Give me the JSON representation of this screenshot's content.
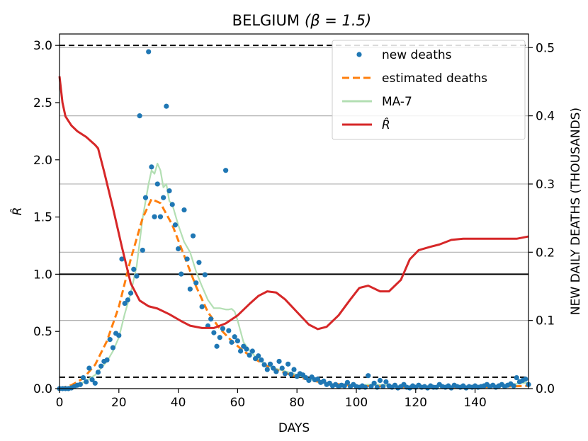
{
  "chart_data": {
    "type": "line",
    "title": "BELGIUM",
    "title_math": "(β = 1.5)",
    "xlabel": "DAYS",
    "ylabel_left": "R̂",
    "ylabel_right": "NEW DAILY DEATHS (THOUSANDS)",
    "xlim": [
      0,
      158
    ],
    "ylim_left": [
      0,
      3.1
    ],
    "ylim_right": [
      0,
      0.52
    ],
    "xticks": [
      "0",
      "20",
      "40",
      "60",
      "80",
      "100",
      "120",
      "140"
    ],
    "yticks_left": [
      "0.0",
      "0.5",
      "1.0",
      "1.5",
      "2.0",
      "2.5",
      "3.0"
    ],
    "yticks_right": [
      "0.0",
      "0.1",
      "0.2",
      "0.3",
      "0.4",
      "0.5"
    ],
    "grid": "horizontal lines at right-axis ticks",
    "legend_position": "top-right",
    "legend": [
      {
        "label": "new deaths",
        "style": "dot",
        "color": "#1f77b4"
      },
      {
        "label": "estimated deaths",
        "style": "dashed",
        "color": "#ff7f0e"
      },
      {
        "label": "MA-7",
        "style": "line",
        "color": "#b3dfb3"
      },
      {
        "label": "R̂",
        "style": "line",
        "color": "#d62728"
      }
    ],
    "reference_lines_left": [
      {
        "y": 3.0,
        "style": "dashed"
      },
      {
        "y": 1.0,
        "style": "solid"
      },
      {
        "y": 0.1,
        "style": "dashed"
      }
    ],
    "series": [
      {
        "name": "new deaths",
        "axis": "right",
        "kind": "scatter",
        "color": "#1f77b4",
        "points": [
          [
            0,
            0
          ],
          [
            1,
            0
          ],
          [
            2,
            0
          ],
          [
            3,
            0
          ],
          [
            4,
            0.001
          ],
          [
            5,
            0.003
          ],
          [
            6,
            0.005
          ],
          [
            7,
            0.006
          ],
          [
            8,
            0.016
          ],
          [
            9,
            0.01
          ],
          [
            10,
            0.03
          ],
          [
            11,
            0.013
          ],
          [
            12,
            0.008
          ],
          [
            13,
            0.024
          ],
          [
            14,
            0.033
          ],
          [
            15,
            0.04
          ],
          [
            16,
            0.042
          ],
          [
            17,
            0.072
          ],
          [
            18,
            0.06
          ],
          [
            19,
            0.081
          ],
          [
            20,
            0.078
          ],
          [
            21,
            0.19
          ],
          [
            22,
            0.125
          ],
          [
            23,
            0.13
          ],
          [
            24,
            0.14
          ],
          [
            25,
            0.175
          ],
          [
            26,
            0.165
          ],
          [
            27,
            0.4
          ],
          [
            28,
            0.203
          ],
          [
            29,
            0.28
          ],
          [
            30,
            0.494
          ],
          [
            31,
            0.325
          ],
          [
            32,
            0.252
          ],
          [
            33,
            0.3
          ],
          [
            34,
            0.252
          ],
          [
            35,
            0.28
          ],
          [
            36,
            0.414
          ],
          [
            37,
            0.29
          ],
          [
            38,
            0.27
          ],
          [
            39,
            0.24
          ],
          [
            40,
            0.205
          ],
          [
            41,
            0.168
          ],
          [
            42,
            0.262
          ],
          [
            43,
            0.19
          ],
          [
            44,
            0.146
          ],
          [
            45,
            0.224
          ],
          [
            46,
            0.155
          ],
          [
            47,
            0.185
          ],
          [
            48,
            0.12
          ],
          [
            49,
            0.167
          ],
          [
            50,
            0.092
          ],
          [
            51,
            0.102
          ],
          [
            52,
            0.082
          ],
          [
            53,
            0.062
          ],
          [
            54,
            0.075
          ],
          [
            55,
            0.088
          ],
          [
            56,
            0.32
          ],
          [
            57,
            0.085
          ],
          [
            58,
            0.068
          ],
          [
            59,
            0.076
          ],
          [
            60,
            0.07
          ],
          [
            61,
            0.055
          ],
          [
            62,
            0.062
          ],
          [
            63,
            0.058
          ],
          [
            64,
            0.049
          ],
          [
            65,
            0.055
          ],
          [
            66,
            0.044
          ],
          [
            67,
            0.048
          ],
          [
            68,
            0.042
          ],
          [
            69,
            0.035
          ],
          [
            70,
            0.028
          ],
          [
            71,
            0.036
          ],
          [
            72,
            0.03
          ],
          [
            73,
            0.025
          ],
          [
            74,
            0.04
          ],
          [
            75,
            0.03
          ],
          [
            76,
            0.022
          ],
          [
            77,
            0.036
          ],
          [
            78,
            0.021
          ],
          [
            79,
            0.028
          ],
          [
            80,
            0.018
          ],
          [
            81,
            0.022
          ],
          [
            82,
            0.02
          ],
          [
            83,
            0.016
          ],
          [
            84,
            0.012
          ],
          [
            85,
            0.017
          ],
          [
            86,
            0.013
          ],
          [
            87,
            0.014
          ],
          [
            88,
            0.009
          ],
          [
            89,
            0.011
          ],
          [
            90,
            0.006
          ],
          [
            91,
            0.008
          ],
          [
            92,
            0.004
          ],
          [
            93,
            0.006
          ],
          [
            94,
            0.003
          ],
          [
            95,
            0.005
          ],
          [
            96,
            0.004
          ],
          [
            97,
            0.009
          ],
          [
            98,
            0.003
          ],
          [
            99,
            0.006
          ],
          [
            100,
            0.003
          ],
          [
            101,
            0.002
          ],
          [
            102,
            0.004
          ],
          [
            103,
            0.002
          ],
          [
            104,
            0.019
          ],
          [
            105,
            0.003
          ],
          [
            106,
            0.008
          ],
          [
            107,
            0.002
          ],
          [
            108,
            0.012
          ],
          [
            109,
            0.003
          ],
          [
            110,
            0.01
          ],
          [
            111,
            0.004
          ],
          [
            112,
            0.002
          ],
          [
            113,
            0.005
          ],
          [
            114,
            0.001
          ],
          [
            115,
            0.003
          ],
          [
            116,
            0.006
          ],
          [
            117,
            0.002
          ],
          [
            118,
            0.001
          ],
          [
            119,
            0.004
          ],
          [
            120,
            0.002
          ],
          [
            121,
            0.005
          ],
          [
            122,
            0.002
          ],
          [
            123,
            0.003
          ],
          [
            124,
            0.001
          ],
          [
            125,
            0.004
          ],
          [
            126,
            0.002
          ],
          [
            127,
            0.002
          ],
          [
            128,
            0.006
          ],
          [
            129,
            0.003
          ],
          [
            130,
            0.002
          ],
          [
            131,
            0.004
          ],
          [
            132,
            0.001
          ],
          [
            133,
            0.005
          ],
          [
            134,
            0.003
          ],
          [
            135,
            0.002
          ],
          [
            136,
            0.004
          ],
          [
            137,
            0.001
          ],
          [
            138,
            0.003
          ],
          [
            139,
            0.002
          ],
          [
            140,
            0.004
          ],
          [
            141,
            0.002
          ],
          [
            142,
            0.003
          ],
          [
            143,
            0.004
          ],
          [
            144,
            0.006
          ],
          [
            145,
            0.003
          ],
          [
            146,
            0.005
          ],
          [
            147,
            0.002
          ],
          [
            148,
            0.004
          ],
          [
            149,
            0.006
          ],
          [
            150,
            0.003
          ],
          [
            151,
            0.005
          ],
          [
            152,
            0.007
          ],
          [
            153,
            0.004
          ],
          [
            154,
            0.016
          ],
          [
            155,
            0.01
          ],
          [
            156,
            0.012
          ],
          [
            157,
            0.014
          ],
          [
            158,
            0.006
          ]
        ]
      },
      {
        "name": "estimated deaths",
        "axis": "right",
        "kind": "line",
        "dash": true,
        "color": "#ff7f0e",
        "points": [
          [
            0,
            0
          ],
          [
            4,
            0.005
          ],
          [
            8,
            0.015
          ],
          [
            12,
            0.035
          ],
          [
            16,
            0.07
          ],
          [
            20,
            0.12
          ],
          [
            24,
            0.19
          ],
          [
            28,
            0.25
          ],
          [
            31,
            0.278
          ],
          [
            34,
            0.272
          ],
          [
            38,
            0.24
          ],
          [
            42,
            0.195
          ],
          [
            46,
            0.15
          ],
          [
            50,
            0.112
          ],
          [
            54,
            0.088
          ],
          [
            58,
            0.07
          ],
          [
            62,
            0.055
          ],
          [
            66,
            0.043
          ],
          [
            70,
            0.033
          ],
          [
            74,
            0.026
          ],
          [
            78,
            0.02
          ],
          [
            82,
            0.015
          ],
          [
            86,
            0.011
          ],
          [
            90,
            0.008
          ],
          [
            95,
            0.006
          ],
          [
            100,
            0.004
          ],
          [
            110,
            0.003
          ],
          [
            120,
            0.002
          ],
          [
            130,
            0.002
          ],
          [
            140,
            0.002
          ],
          [
            150,
            0.003
          ],
          [
            158,
            0.004
          ]
        ]
      },
      {
        "name": "MA-7",
        "axis": "right",
        "kind": "line",
        "color": "#b3dfb3",
        "points": [
          [
            0,
            0
          ],
          [
            4,
            0.002
          ],
          [
            8,
            0.009
          ],
          [
            12,
            0.02
          ],
          [
            16,
            0.04
          ],
          [
            18,
            0.055
          ],
          [
            20,
            0.075
          ],
          [
            22,
            0.11
          ],
          [
            24,
            0.14
          ],
          [
            26,
            0.18
          ],
          [
            28,
            0.25
          ],
          [
            30,
            0.3
          ],
          [
            31,
            0.32
          ],
          [
            32,
            0.315
          ],
          [
            33,
            0.33
          ],
          [
            34,
            0.32
          ],
          [
            35,
            0.295
          ],
          [
            36,
            0.3
          ],
          [
            37,
            0.275
          ],
          [
            38,
            0.27
          ],
          [
            40,
            0.24
          ],
          [
            42,
            0.215
          ],
          [
            44,
            0.2
          ],
          [
            46,
            0.172
          ],
          [
            48,
            0.15
          ],
          [
            50,
            0.13
          ],
          [
            52,
            0.118
          ],
          [
            54,
            0.118
          ],
          [
            56,
            0.116
          ],
          [
            57,
            0.116
          ],
          [
            58,
            0.117
          ],
          [
            59,
            0.113
          ],
          [
            60,
            0.1
          ],
          [
            62,
            0.068
          ],
          [
            64,
            0.056
          ],
          [
            66,
            0.047
          ],
          [
            68,
            0.04
          ],
          [
            70,
            0.033
          ],
          [
            74,
            0.028
          ],
          [
            78,
            0.023
          ],
          [
            82,
            0.017
          ],
          [
            86,
            0.012
          ],
          [
            90,
            0.008
          ],
          [
            95,
            0.005
          ],
          [
            100,
            0.004
          ],
          [
            104,
            0.006
          ],
          [
            108,
            0.006
          ],
          [
            112,
            0.004
          ],
          [
            120,
            0.003
          ],
          [
            130,
            0.003
          ],
          [
            140,
            0.003
          ],
          [
            150,
            0.005
          ],
          [
            158,
            0.009
          ]
        ]
      },
      {
        "name": "R̂",
        "axis": "left",
        "kind": "line",
        "color": "#d62728",
        "points": [
          [
            0,
            2.73
          ],
          [
            1,
            2.5
          ],
          [
            2,
            2.38
          ],
          [
            4,
            2.3
          ],
          [
            6,
            2.25
          ],
          [
            9,
            2.2
          ],
          [
            12,
            2.13
          ],
          [
            13,
            2.1
          ],
          [
            15,
            1.9
          ],
          [
            18,
            1.58
          ],
          [
            21,
            1.24
          ],
          [
            24,
            0.92
          ],
          [
            27,
            0.77
          ],
          [
            30,
            0.72
          ],
          [
            33,
            0.7
          ],
          [
            37,
            0.65
          ],
          [
            41,
            0.59
          ],
          [
            44,
            0.55
          ],
          [
            48,
            0.53
          ],
          [
            52,
            0.53
          ],
          [
            56,
            0.57
          ],
          [
            60,
            0.64
          ],
          [
            64,
            0.74
          ],
          [
            67,
            0.81
          ],
          [
            70,
            0.85
          ],
          [
            73,
            0.84
          ],
          [
            76,
            0.78
          ],
          [
            80,
            0.67
          ],
          [
            84,
            0.56
          ],
          [
            87,
            0.52
          ],
          [
            90,
            0.54
          ],
          [
            94,
            0.64
          ],
          [
            98,
            0.78
          ],
          [
            101,
            0.88
          ],
          [
            104,
            0.9
          ],
          [
            108,
            0.85
          ],
          [
            111,
            0.85
          ],
          [
            115,
            0.95
          ],
          [
            118,
            1.13
          ],
          [
            121,
            1.21
          ],
          [
            125,
            1.24
          ],
          [
            128,
            1.26
          ],
          [
            132,
            1.3
          ],
          [
            136,
            1.31
          ],
          [
            142,
            1.31
          ],
          [
            148,
            1.31
          ],
          [
            154,
            1.31
          ],
          [
            158,
            1.33
          ]
        ]
      }
    ]
  }
}
